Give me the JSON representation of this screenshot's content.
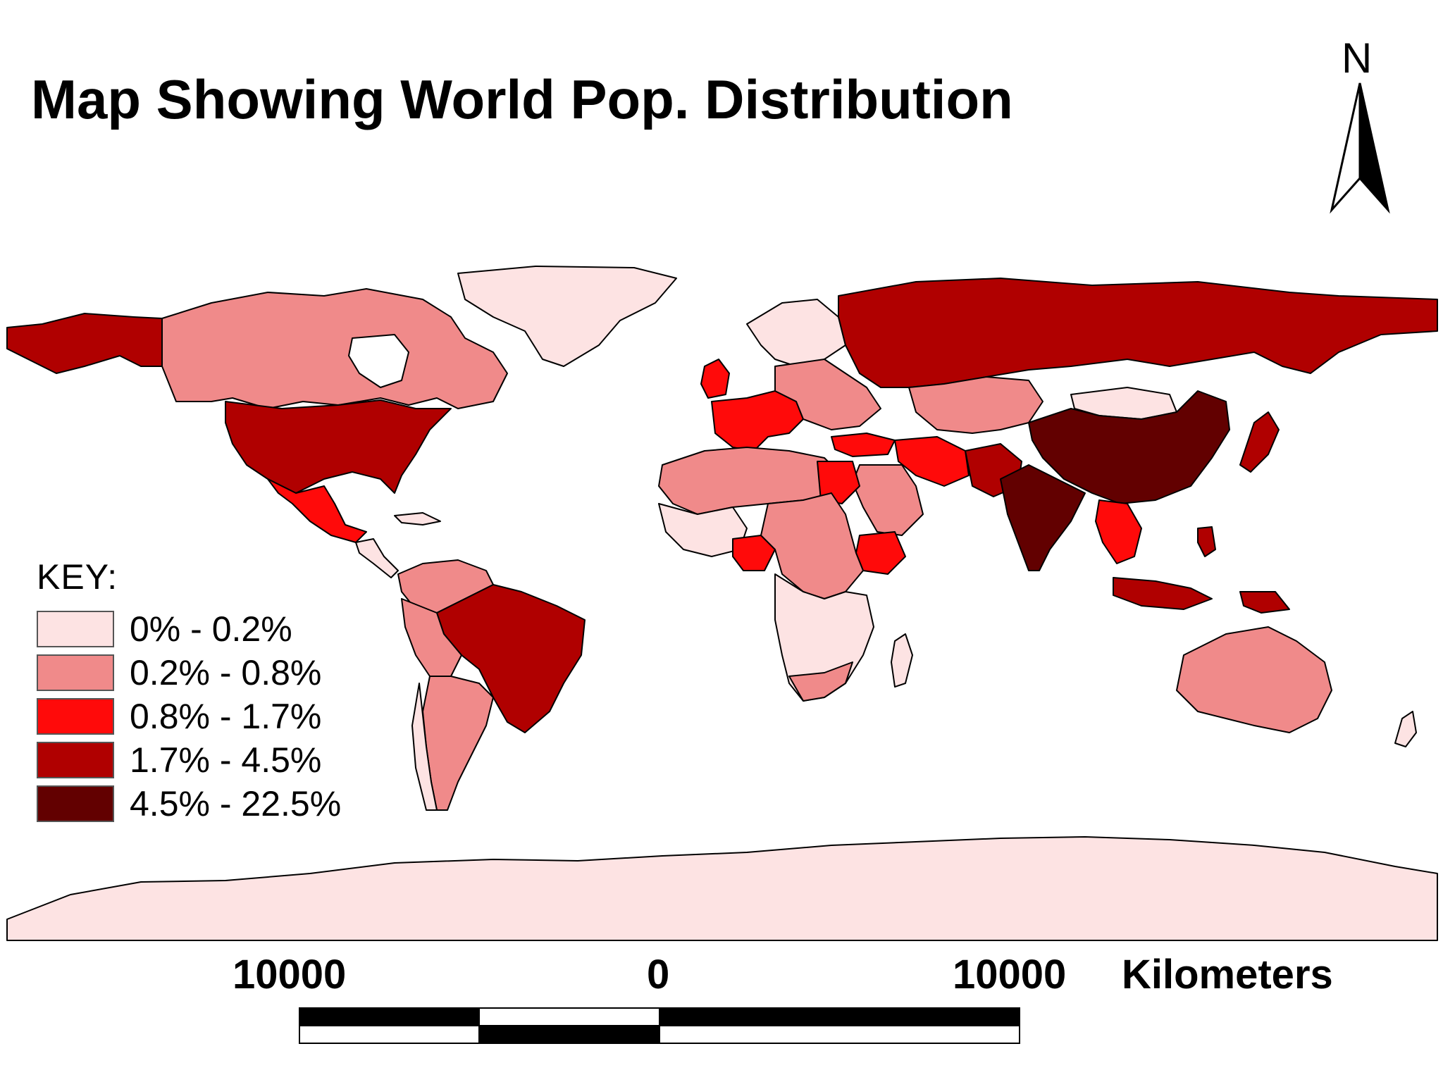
{
  "title": "Map Showing World Pop. Distribution",
  "north_arrow": {
    "label": "N"
  },
  "legend": {
    "title": "KEY:",
    "classes": [
      {
        "label": "0% - 0.2%",
        "color": "#fde3e3"
      },
      {
        "label": "0.2% - 0.8%",
        "color": "#f08a8a"
      },
      {
        "label": "0.8% - 1.7%",
        "color": "#ff0a0a"
      },
      {
        "label": "1.7% - 4.5%",
        "color": "#b00000"
      },
      {
        "label": "4.5% - 22.5%",
        "color": "#620000"
      }
    ]
  },
  "scale_bar": {
    "left_label": "10000",
    "center_label": "0",
    "right_label": "10000",
    "units": "Kilometers"
  },
  "colors": {
    "ocean": "#ffffff",
    "border": "#000000",
    "class_1": "#fde3e3",
    "class_2": "#f08a8a",
    "class_3": "#ff0a0a",
    "class_4": "#b00000",
    "class_5": "#620000"
  }
}
